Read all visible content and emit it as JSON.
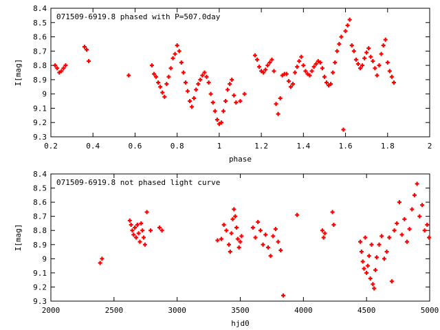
{
  "chart_data": [
    {
      "type": "scatter",
      "title": "071509-6919.8 phased with P=507.0day",
      "xlabel": "phase",
      "ylabel": "I[mag]",
      "xlim": [
        0.2,
        2.0
      ],
      "ylim": [
        9.3,
        8.4
      ],
      "y_inverted": true,
      "grid": false,
      "legend": "none",
      "marker_color": "#ff0000",
      "xticks": [
        "0.2",
        "0.4",
        "0.6",
        "0.8",
        "1",
        "1.2",
        "1.4",
        "1.6",
        "1.8",
        "2"
      ],
      "yticks": [
        "8.4",
        "8.5",
        "8.6",
        "8.7",
        "8.8",
        "8.9",
        "9",
        "9.1",
        "9.2",
        "9.3"
      ],
      "series": [
        {
          "x": [
            0.22,
            0.23,
            0.24,
            0.25,
            0.26,
            0.27,
            0.36,
            0.37,
            0.38,
            0.57,
            0.68,
            0.69,
            0.7,
            0.71,
            0.72,
            0.73,
            0.74,
            0.75,
            0.76,
            0.77,
            0.78,
            0.79,
            0.8,
            0.81,
            0.82,
            0.83,
            0.84,
            0.85,
            0.86,
            0.87,
            0.88,
            0.89,
            0.9,
            0.91,
            0.92,
            0.93,
            0.94,
            0.95,
            0.96,
            0.97,
            0.98,
            0.99,
            1.0,
            1.01,
            1.02,
            1.03,
            1.04,
            1.05,
            1.06,
            1.07,
            1.08,
            1.1,
            1.12,
            1.17,
            1.18,
            1.19,
            1.2,
            1.21,
            1.22,
            1.23,
            1.24,
            1.25,
            1.26,
            1.27,
            1.28,
            1.29,
            1.3,
            1.31,
            1.32,
            1.33,
            1.34,
            1.35,
            1.36,
            1.37,
            1.38,
            1.39,
            1.4,
            1.41,
            1.42,
            1.43,
            1.44,
            1.45,
            1.46,
            1.47,
            1.48,
            1.49,
            1.5,
            1.51,
            1.52,
            1.53,
            1.54,
            1.55,
            1.56,
            1.57,
            1.58,
            1.59,
            1.6,
            1.61,
            1.62,
            1.63,
            1.64,
            1.65,
            1.66,
            1.67,
            1.68,
            1.69,
            1.7,
            1.71,
            1.72,
            1.73,
            1.74,
            1.75,
            1.76,
            1.77,
            1.78,
            1.79,
            1.8,
            1.81,
            1.82,
            1.83
          ],
          "y": [
            8.8,
            8.82,
            8.85,
            8.84,
            8.82,
            8.8,
            8.67,
            8.69,
            8.77,
            8.87,
            8.8,
            8.86,
            8.88,
            8.92,
            8.95,
            8.99,
            9.02,
            8.93,
            8.88,
            8.82,
            8.75,
            8.72,
            8.66,
            8.7,
            8.78,
            8.85,
            8.92,
            8.98,
            9.05,
            9.09,
            9.03,
            8.97,
            8.93,
            8.9,
            8.87,
            8.85,
            8.88,
            8.92,
            9.0,
            9.06,
            9.12,
            9.18,
            9.21,
            9.2,
            9.12,
            9.05,
            8.97,
            8.93,
            8.9,
            9.01,
            9.06,
            9.05,
            9.0,
            8.73,
            8.76,
            8.81,
            8.84,
            8.85,
            8.83,
            8.8,
            8.78,
            8.76,
            8.84,
            9.07,
            9.14,
            9.03,
            8.87,
            8.86,
            8.86,
            8.91,
            8.95,
            8.93,
            8.85,
            8.81,
            8.77,
            8.74,
            8.8,
            8.84,
            8.86,
            8.87,
            8.84,
            8.81,
            8.79,
            8.77,
            8.78,
            8.82,
            8.88,
            8.92,
            8.94,
            8.93,
            8.85,
            8.78,
            8.7,
            8.65,
            8.6,
            9.25,
            8.56,
            8.52,
            8.48,
            8.66,
            8.7,
            8.76,
            8.79,
            8.82,
            8.8,
            8.75,
            8.71,
            8.68,
            8.74,
            8.77,
            8.82,
            8.87,
            8.8,
            8.72,
            8.66,
            8.62,
            8.78,
            8.84,
            8.88,
            8.92
          ]
        }
      ]
    },
    {
      "type": "scatter",
      "title": "071509-6919.8 not phased light curve",
      "xlabel": "hjd0",
      "ylabel": "I[mag]",
      "xlim": [
        2000,
        5000
      ],
      "ylim": [
        9.3,
        8.4
      ],
      "y_inverted": true,
      "grid": false,
      "legend": "none",
      "marker_color": "#ff0000",
      "xticks": [
        "2000",
        "2500",
        "3000",
        "3500",
        "4000",
        "4500",
        "5000"
      ],
      "yticks": [
        "8.4",
        "8.5",
        "8.6",
        "8.7",
        "8.8",
        "8.9",
        "9",
        "9.1",
        "9.2",
        "9.3"
      ],
      "series": [
        {
          "x": [
            2390,
            2405,
            2625,
            2635,
            2645,
            2655,
            2665,
            2675,
            2685,
            2695,
            2705,
            2715,
            2725,
            2735,
            2745,
            2760,
            2790,
            2860,
            2880,
            3320,
            3350,
            3370,
            3390,
            3410,
            3420,
            3430,
            3440,
            3450,
            3460,
            3470,
            3480,
            3490,
            3500,
            3510,
            3600,
            3620,
            3640,
            3660,
            3680,
            3700,
            3720,
            3740,
            3760,
            3780,
            3800,
            3820,
            3840,
            3950,
            4150,
            4160,
            4170,
            4230,
            4240,
            4450,
            4460,
            4470,
            4480,
            4490,
            4500,
            4510,
            4520,
            4530,
            4540,
            4550,
            4560,
            4570,
            4580,
            4600,
            4620,
            4640,
            4660,
            4680,
            4700,
            4720,
            4740,
            4760,
            4780,
            4800,
            4820,
            4840,
            4860,
            4880,
            4900,
            4920,
            4940,
            4960,
            4980,
            4995
          ],
          "y": [
            9.03,
            9.0,
            8.73,
            8.76,
            8.8,
            8.83,
            8.78,
            8.85,
            8.76,
            8.82,
            8.88,
            8.75,
            8.8,
            8.85,
            8.9,
            8.67,
            8.8,
            8.78,
            8.8,
            8.87,
            8.86,
            8.76,
            8.8,
            8.9,
            8.95,
            8.82,
            8.72,
            8.65,
            8.7,
            8.78,
            8.86,
            8.92,
            8.88,
            8.84,
            8.78,
            8.85,
            8.74,
            8.8,
            8.9,
            8.83,
            8.92,
            8.98,
            8.84,
            8.79,
            8.88,
            8.94,
            9.26,
            8.69,
            8.8,
            8.85,
            8.82,
            8.67,
            8.76,
            8.88,
            8.95,
            9.02,
            9.07,
            8.85,
            9.1,
            9.05,
            8.98,
            9.14,
            8.9,
            9.18,
            9.21,
            9.08,
            8.99,
            8.9,
            8.84,
            9.0,
            8.95,
            8.85,
            9.16,
            8.8,
            8.75,
            8.6,
            8.83,
            8.72,
            8.88,
            8.79,
            8.65,
            8.55,
            8.47,
            8.7,
            8.62,
            8.8,
            8.76,
            8.85
          ]
        }
      ]
    }
  ]
}
